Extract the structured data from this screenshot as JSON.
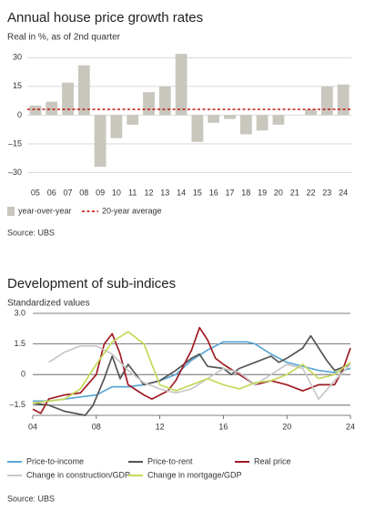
{
  "chart_data": [
    {
      "type": "bar",
      "title": "Annual house price growth rates",
      "subtitle": "Real in %, as of 2nd quarter",
      "categories": [
        "05",
        "06",
        "07",
        "08",
        "09",
        "10",
        "11",
        "12",
        "13",
        "14",
        "15",
        "16",
        "17",
        "18",
        "19",
        "20",
        "21",
        "22",
        "23",
        "24"
      ],
      "series": [
        {
          "name": "year-over-year",
          "color": "#c9c7bd",
          "values": [
            5,
            7,
            17,
            26,
            -27,
            -12,
            -5,
            12,
            15,
            32,
            -14,
            -4,
            -2,
            -10,
            -8,
            -5,
            0,
            3,
            15,
            16
          ]
        }
      ],
      "reference_lines": [
        {
          "name": "20-year average",
          "color": "#c00000",
          "value": 3
        }
      ],
      "ylim": [
        -35,
        33
      ],
      "yticks": [
        30,
        15,
        0,
        {
          "value": -15,
          "label": "–15"
        },
        {
          "value": -30,
          "label": "–30"
        }
      ],
      "grid": true,
      "source": "Source: UBS"
    },
    {
      "type": "line",
      "title": "Development of sub-indices",
      "subtitle": "Standardized values",
      "xlim": [
        2004,
        2024
      ],
      "xticks": [
        {
          "value": 2004,
          "label": "04"
        },
        {
          "value": 2008,
          "label": "08"
        },
        {
          "value": 2012,
          "label": "12"
        },
        {
          "value": 2016,
          "label": "16"
        },
        {
          "value": 2020,
          "label": "20"
        },
        {
          "value": 2024,
          "label": "24"
        }
      ],
      "ylim": [
        -2,
        3
      ],
      "yticks": [
        {
          "value": 3,
          "label": "3.0"
        },
        1.5,
        0,
        {
          "value": -1.5,
          "label": "–1.5"
        }
      ],
      "grid": true,
      "series": [
        {
          "name": "Price-to-income",
          "color": "#5aa6d6",
          "x": [
            2004,
            2005,
            2006,
            2007,
            2008,
            2009,
            2010,
            2011,
            2012,
            2013,
            2014,
            2015,
            2016,
            2017,
            2017.5,
            2018,
            2019,
            2020,
            2021,
            2022,
            2023,
            2024
          ],
          "values": [
            -1.3,
            -1.3,
            -1.2,
            -1.1,
            -1.0,
            -0.6,
            -0.6,
            -0.5,
            -0.3,
            0,
            0.7,
            1.2,
            1.6,
            1.6,
            1.6,
            1.5,
            1.0,
            0.6,
            0.4,
            0.2,
            0.1,
            0.3
          ]
        },
        {
          "name": "Price-to-rent",
          "color": "#555555",
          "x": [
            2004,
            2005,
            2006,
            2007.3,
            2007.8,
            2008.5,
            2009,
            2009.5,
            2010,
            2011,
            2012,
            2013,
            2014,
            2014.5,
            2015,
            2016,
            2016.5,
            2017,
            2018,
            2019,
            2019.5,
            2020,
            2021,
            2021.5,
            2022.5,
            2023,
            2024
          ],
          "values": [
            -1.4,
            -1.5,
            -1.8,
            -2.0,
            -1.5,
            -0.2,
            0.9,
            -0.2,
            0.5,
            -0.5,
            -0.3,
            0.2,
            0.8,
            1.0,
            0.4,
            0.3,
            0,
            0.3,
            0.6,
            0.9,
            0.6,
            0.8,
            1.3,
            1.9,
            0.7,
            0.2,
            0.5
          ]
        },
        {
          "name": "Real price",
          "color": "#a01c24",
          "x": [
            2004,
            2004.5,
            2005,
            2006,
            2007,
            2008,
            2008.5,
            2009,
            2009.5,
            2010,
            2011,
            2011.5,
            2012.5,
            2013,
            2014,
            2014.5,
            2015,
            2015.5,
            2016,
            2017,
            2018,
            2019,
            2020,
            2021,
            2022,
            2023,
            2023.5,
            2024
          ],
          "values": [
            -1.7,
            -1.9,
            -1.2,
            -1.0,
            -0.9,
            0,
            1.5,
            2.0,
            1.0,
            -0.5,
            -1.0,
            -1.2,
            -0.8,
            -0.3,
            1.2,
            2.3,
            1.7,
            0.8,
            0.5,
            0,
            -0.5,
            -0.3,
            -0.5,
            -0.8,
            -0.5,
            -0.5,
            0.2,
            1.3
          ]
        },
        {
          "name": "Change in construction/GDP",
          "color": "#c8c8c8",
          "x": [
            2005,
            2006,
            2007,
            2008,
            2009,
            2010,
            2011,
            2012,
            2013,
            2014,
            2015,
            2016,
            2017,
            2018,
            2019,
            2020,
            2021,
            2022,
            2023,
            2024
          ],
          "values": [
            0.6,
            1.1,
            1.4,
            1.4,
            1.0,
            0.2,
            -0.4,
            -0.7,
            -0.9,
            -0.7,
            -0.2,
            0.3,
            0.1,
            -0.5,
            0,
            0.5,
            0.3,
            -1.2,
            -0.3,
            0.5
          ]
        },
        {
          "name": "Change in mortgage/GDP",
          "color": "#c4d95a",
          "x": [
            2004,
            2005,
            2006,
            2007,
            2008,
            2009,
            2010,
            2011,
            2012,
            2013,
            2014,
            2015,
            2016,
            2017,
            2018,
            2019,
            2020,
            2021,
            2022,
            2023,
            2024
          ],
          "values": [
            -1.4,
            -1.3,
            -1.2,
            -0.7,
            0.5,
            1.6,
            2.1,
            1.5,
            -0.5,
            -0.8,
            -0.5,
            -0.2,
            -0.5,
            -0.7,
            -0.4,
            -0.3,
            0,
            0.5,
            -0.2,
            0,
            0.6
          ]
        }
      ],
      "source": "Source: UBS"
    }
  ]
}
